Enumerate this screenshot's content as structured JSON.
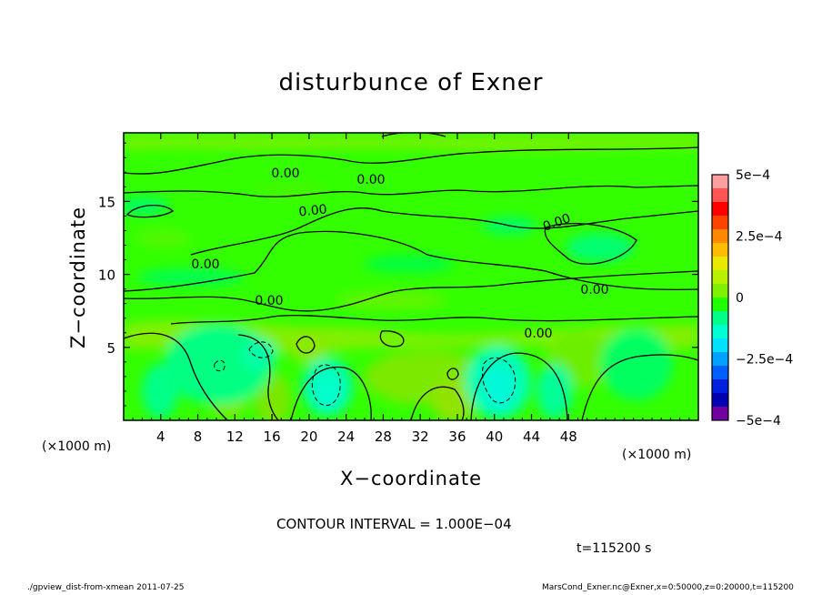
{
  "chart_data": {
    "type": "heatmap",
    "title": "disturbunce of Exner",
    "xlabel": "X−coordinate",
    "ylabel": "Z−coordinate",
    "x_unit_label": "(×1000 m)",
    "xlim": [
      0,
      62
    ],
    "ylim": [
      0,
      19.7
    ],
    "x_ticks": [
      4,
      8,
      12,
      16,
      20,
      24,
      28,
      32,
      36,
      40,
      44,
      48
    ],
    "y_ticks": [
      5,
      10,
      15
    ],
    "colorbar": {
      "min": -0.0005,
      "max": 0.0005,
      "tick_labels": [
        "5e−4",
        "2.5e−4",
        "0",
        "−2.5e−4",
        "−5e−4"
      ],
      "tick_values": [
        0.0005,
        0.00025,
        0,
        -0.00025,
        -0.0005
      ],
      "colors": [
        "#ffa0a0",
        "#ff5555",
        "#ff0000",
        "#ff4400",
        "#ff8800",
        "#ffbb00",
        "#e8e800",
        "#b8f000",
        "#80f000",
        "#20ff00",
        "#00ff88",
        "#00ffd0",
        "#00e0ff",
        "#00a0ff",
        "#0060ff",
        "#0020e0",
        "#0000b0",
        "#7000a0"
      ]
    },
    "contour_labels": [
      "0.00",
      "0.00",
      "0.00",
      "0.00",
      "0.00",
      "0.00",
      "0.00",
      "0.00"
    ],
    "contour_interval_text": "CONTOUR INTERVAL = 1.000E−04",
    "time_text": "t=115200 s",
    "field_range_shown": [
      -0.00025,
      0.0001
    ]
  },
  "footer": {
    "left": "./gpview_dist-from-xmean  2011-07-25",
    "right": "MarsCond_Exner.nc@Exner,x=0:50000,z=0:20000,t=115200"
  }
}
